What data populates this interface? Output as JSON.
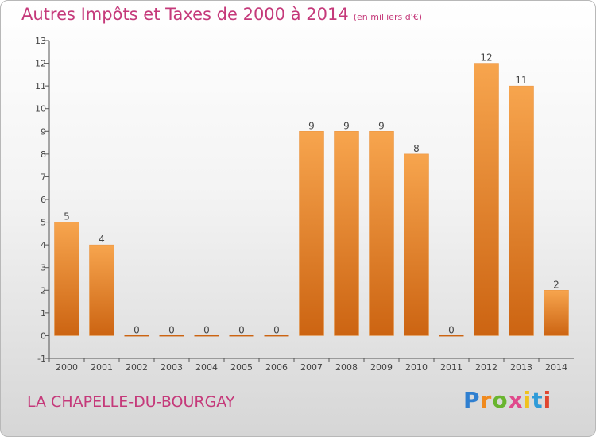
{
  "chart_data": {
    "type": "bar",
    "title": "Autres Impôts et Taxes de 2000 à 2014",
    "unit": "(en milliers d'€)",
    "categories": [
      "2000",
      "2001",
      "2002",
      "2003",
      "2004",
      "2005",
      "2006",
      "2007",
      "2008",
      "2009",
      "2010",
      "2011",
      "2012",
      "2013",
      "2014"
    ],
    "values": [
      5,
      4,
      0,
      0,
      0,
      0,
      0,
      9,
      9,
      9,
      8,
      0,
      12,
      11,
      2
    ],
    "data_labels": [
      "5",
      "4",
      "0",
      "0",
      "0",
      "0",
      "0",
      "9",
      "9",
      "9",
      "8",
      "0",
      "12",
      "11",
      "2"
    ],
    "ylim": [
      -1,
      13
    ],
    "yticks": [
      "-1",
      "0",
      "1",
      "2",
      "3",
      "4",
      "5",
      "6",
      "7",
      "8",
      "9",
      "10",
      "11",
      "12",
      "13"
    ],
    "xlabel": "",
    "ylabel": "",
    "grid": false,
    "bar_color_top": "#f7a54e",
    "bar_color_bottom": "#cc6412"
  },
  "place_name": "LA CHAPELLE-DU-BOURGAY",
  "brand": {
    "text": "Proxiti",
    "letter_colors": [
      "#2f7fd0",
      "#f08a1e",
      "#69b52f",
      "#e04a8c",
      "#f0c21e",
      "#2f9bd8",
      "#e0462f"
    ]
  },
  "colors": {
    "title": "#c5397a",
    "axis": "#555555",
    "text": "#444444"
  }
}
